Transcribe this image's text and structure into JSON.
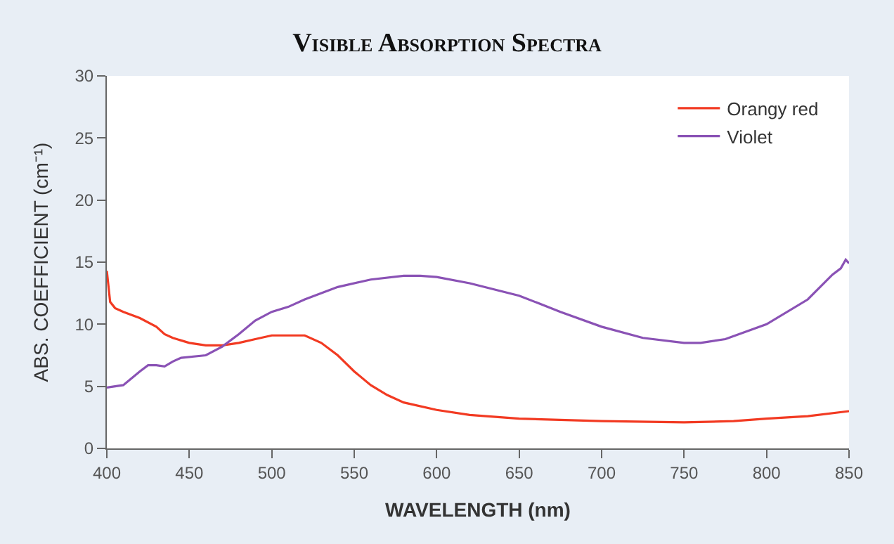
{
  "chart_data": {
    "type": "line",
    "title": "Visible Absorption Spectra",
    "xlabel": "WAVELENGTH (nm)",
    "ylabel": "ABS. COEFFICIENT (cm⁻¹)",
    "xlim": [
      400,
      850
    ],
    "xticks": [
      400,
      450,
      500,
      550,
      600,
      650,
      700,
      750,
      800,
      850
    ],
    "ylim": [
      0,
      30
    ],
    "yticks": [
      0,
      5,
      10,
      15,
      20,
      25,
      30
    ],
    "legend": "top right",
    "marker": "none",
    "line_style": "solid",
    "series": [
      {
        "name": "Orangy red",
        "color": "#f23a22",
        "x": [
          400,
          402,
          405,
          410,
          420,
          430,
          435,
          440,
          450,
          460,
          470,
          480,
          490,
          500,
          510,
          520,
          530,
          540,
          550,
          560,
          570,
          580,
          600,
          620,
          650,
          700,
          750,
          780,
          800,
          825,
          850
        ],
        "values": [
          14.3,
          11.8,
          11.3,
          11.0,
          10.5,
          9.8,
          9.2,
          8.9,
          8.5,
          8.3,
          8.3,
          8.5,
          8.8,
          9.1,
          9.1,
          9.1,
          8.5,
          7.5,
          6.2,
          5.1,
          4.3,
          3.7,
          3.1,
          2.7,
          2.4,
          2.2,
          2.1,
          2.2,
          2.4,
          2.6,
          3.0
        ]
      },
      {
        "name": "Violet",
        "color": "#8a52b5",
        "x": [
          400,
          410,
          420,
          425,
          430,
          435,
          440,
          445,
          460,
          470,
          480,
          490,
          500,
          510,
          520,
          540,
          560,
          580,
          590,
          600,
          620,
          650,
          675,
          700,
          725,
          750,
          760,
          775,
          800,
          825,
          840,
          845,
          848,
          850
        ],
        "values": [
          4.9,
          5.1,
          6.2,
          6.7,
          6.7,
          6.6,
          7.0,
          7.3,
          7.5,
          8.2,
          9.2,
          10.3,
          11.0,
          11.4,
          12.0,
          13.0,
          13.6,
          13.9,
          13.9,
          13.8,
          13.3,
          12.3,
          11.0,
          9.8,
          8.9,
          8.5,
          8.5,
          8.8,
          10.0,
          12.0,
          14.0,
          14.5,
          15.2,
          14.9
        ]
      }
    ]
  }
}
